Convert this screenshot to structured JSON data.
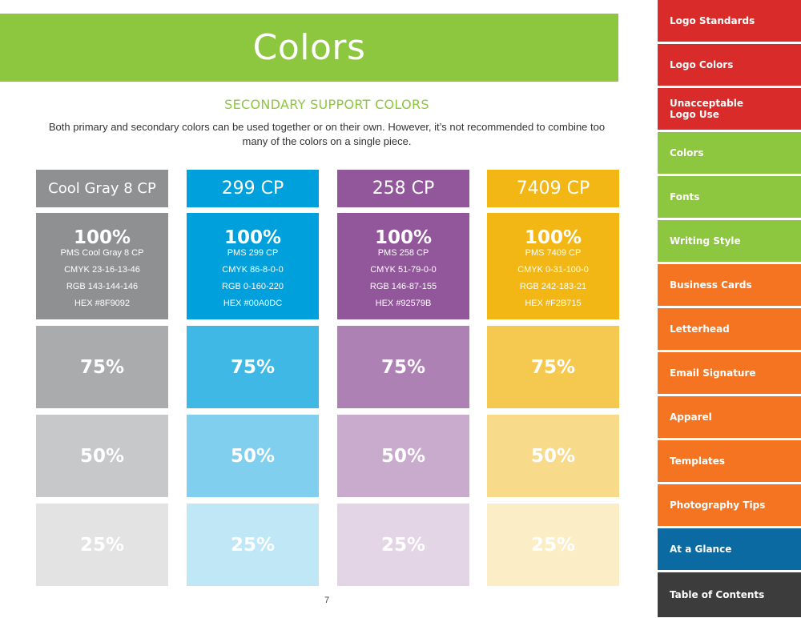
{
  "page": {
    "title": "Colors",
    "section_heading": "SECONDARY SUPPORT COLORS",
    "description": "Both primary and secondary colors can be used together or on their own. However, it’s not recommended to combine too many of the colors on a single piece.",
    "page_number": "7"
  },
  "swatches": [
    {
      "name": "Cool Gray 8 CP",
      "percent": "100%",
      "pms": "PMS Cool Gray 8 CP",
      "cmyk": "CMYK 23-16-13-46",
      "rgb": "RGB 143-144-146",
      "hex": "HEX #8F9092",
      "tint75": "75%",
      "tint50": "50%",
      "tint25": "25%",
      "colors": {
        "c100": "#8f9092",
        "c75": "#aaabad",
        "c50": "#c7c8c9",
        "c25": "#e3e3e4"
      }
    },
    {
      "name": "299 CP",
      "percent": "100%",
      "pms": "PMS 299 CP",
      "cmyk": "CMYK 86-8-0-0",
      "rgb": "RGB 0-160-220",
      "hex": "HEX #00A0DC",
      "tint75": "75%",
      "tint50": "50%",
      "tint25": "25%",
      "colors": {
        "c100": "#00a0dc",
        "c75": "#40b8e5",
        "c50": "#80cfee",
        "c25": "#c0e7f6"
      }
    },
    {
      "name": "258 CP",
      "percent": "100%",
      "pms": "PMS 258 CP",
      "cmyk": "CMYK 51-79-0-0",
      "rgb": "RGB 146-87-155",
      "hex": "HEX #92579B",
      "tint75": "75%",
      "tint50": "50%",
      "tint25": "25%",
      "colors": {
        "c100": "#92579b",
        "c75": "#ad81b4",
        "c50": "#c8abcd",
        "c25": "#e4d5e6"
      }
    },
    {
      "name": "7409 CP",
      "percent": "100%",
      "pms": "PMS 7409 CP",
      "cmyk": "CMYK 0-31-100-0",
      "rgb": "RGB 242-183-21",
      "hex": "HEX #F2B715",
      "tint75": "75%",
      "tint50": "50%",
      "tint25": "25%",
      "colors": {
        "c100": "#f2b715",
        "c75": "#f5c950",
        "c50": "#f8db8a",
        "c25": "#fbedc5"
      }
    }
  ],
  "sidebar": {
    "items": [
      {
        "label": "Logo Standards",
        "color": "#da2b2b"
      },
      {
        "label": "Logo Colors",
        "color": "#da2b2b"
      },
      {
        "label": "Unacceptable Logo Use",
        "color": "#da2b2b"
      },
      {
        "label": "Colors",
        "color": "#8dc63f"
      },
      {
        "label": "Fonts",
        "color": "#8dc63f"
      },
      {
        "label": "Writing Style",
        "color": "#8dc63f"
      },
      {
        "label": "Business Cards",
        "color": "#f47421"
      },
      {
        "label": "Letterhead",
        "color": "#f47421"
      },
      {
        "label": "Email Signature",
        "color": "#f47421"
      },
      {
        "label": "Apparel",
        "color": "#f47421"
      },
      {
        "label": "Templates",
        "color": "#f47421"
      },
      {
        "label": "Photography Tips",
        "color": "#f47421"
      },
      {
        "label": "At a Glance",
        "color": "#0b6aa2"
      },
      {
        "label": "Table of Contents",
        "color": "#3c3c3c"
      }
    ]
  },
  "colors": {
    "title_band": "#8dc63f",
    "heading": "#8dc63f"
  }
}
